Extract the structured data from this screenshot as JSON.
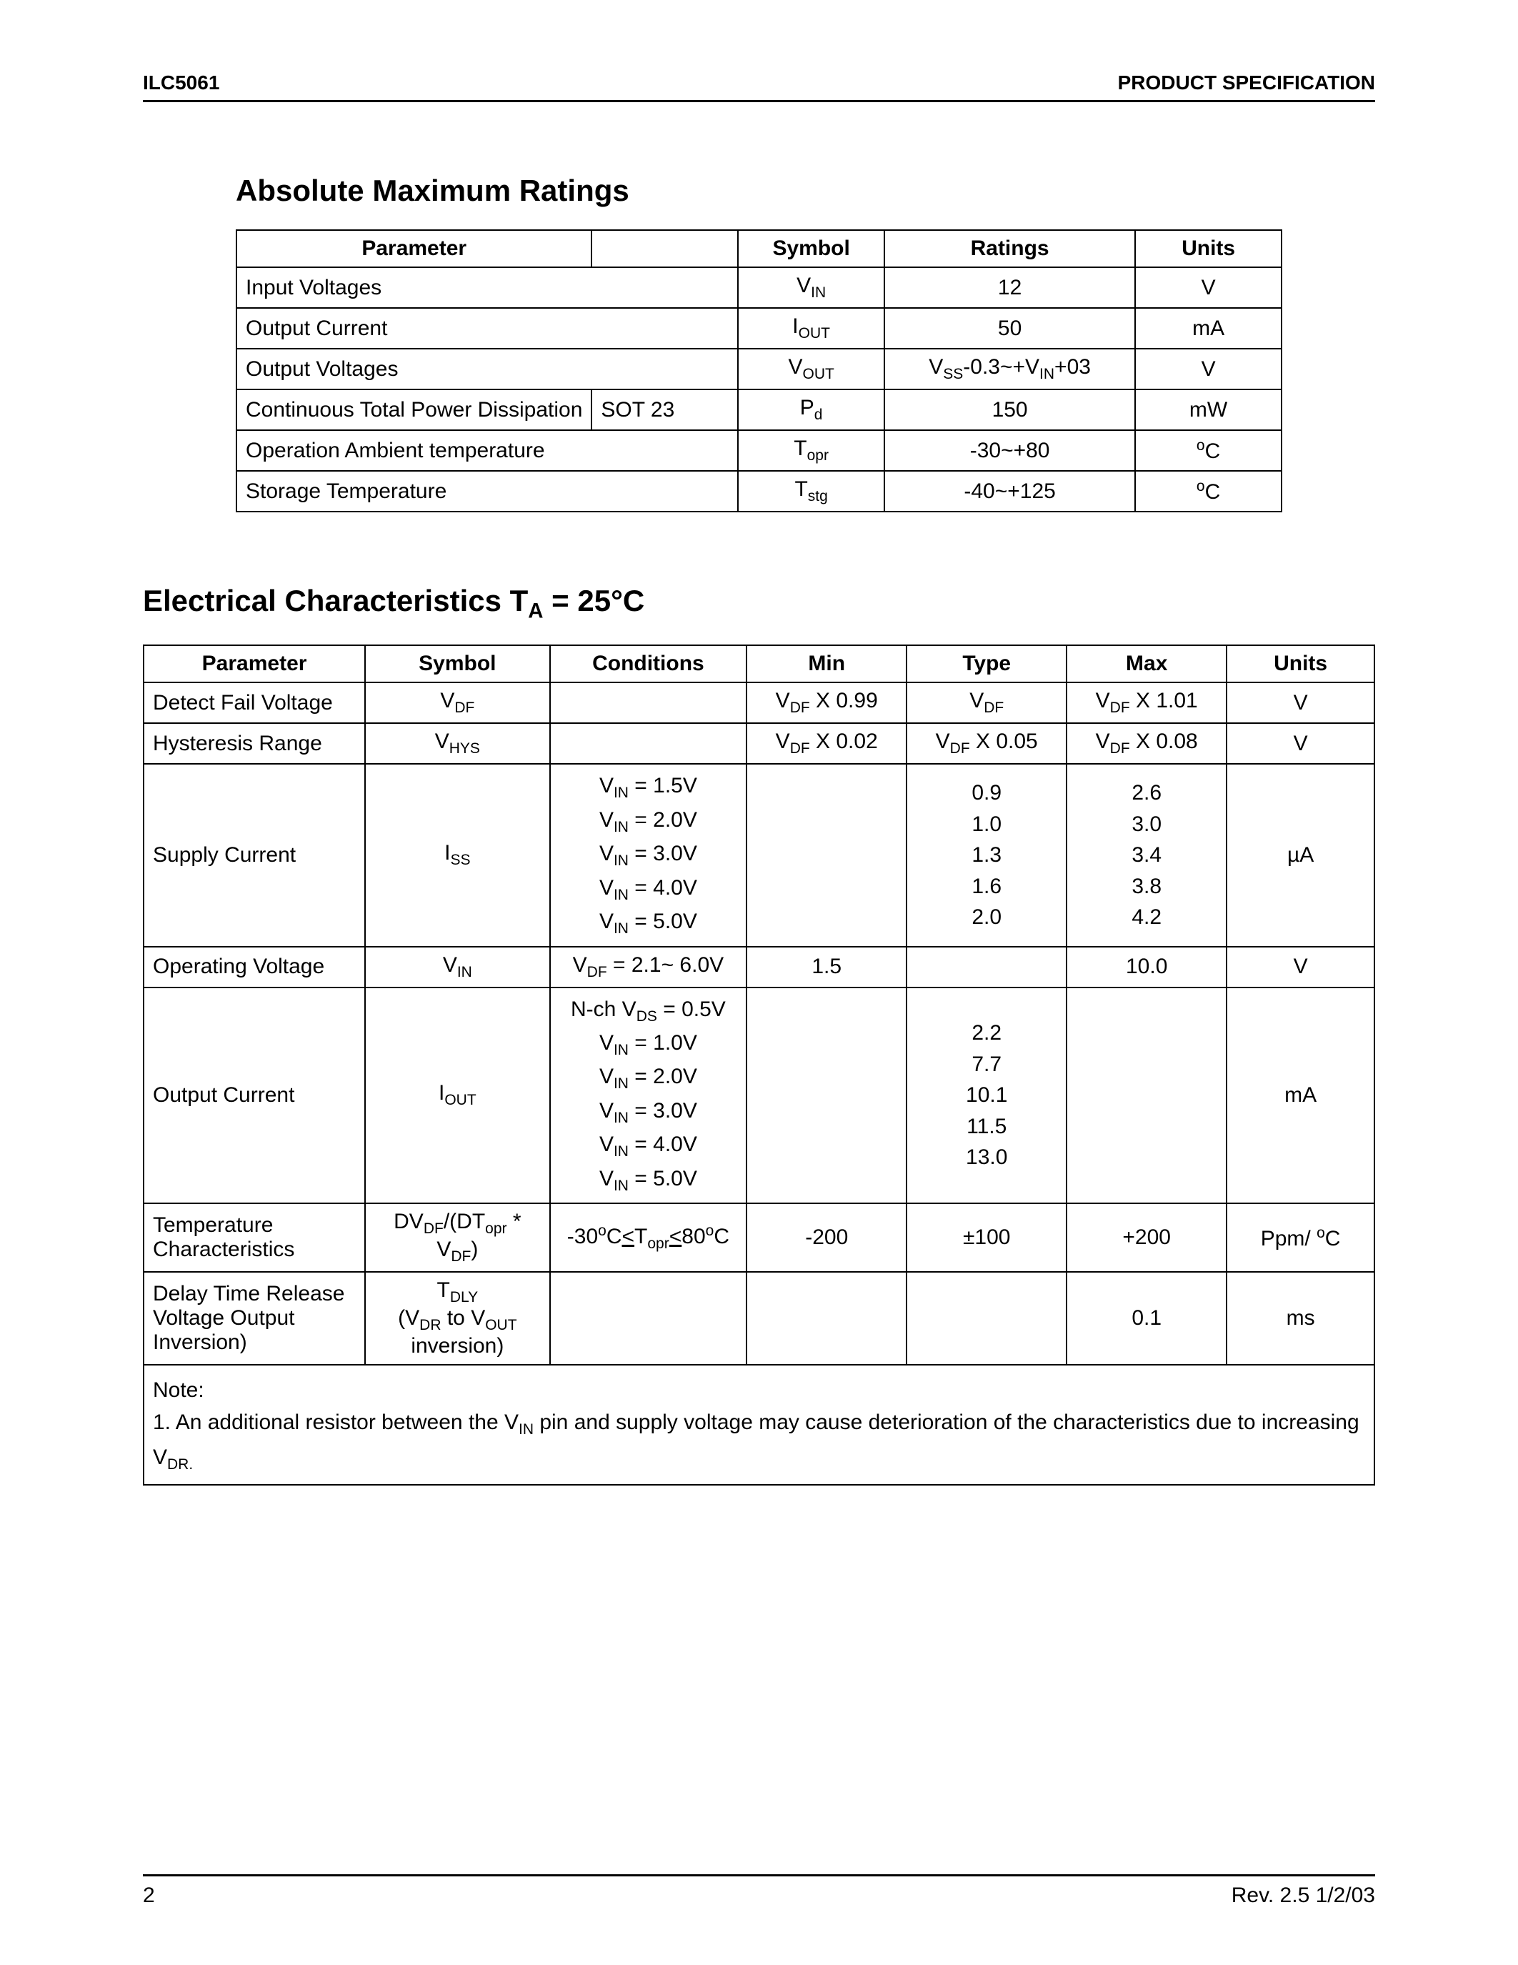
{
  "header": {
    "left": "ILC5061",
    "right": "PRODUCT SPECIFICATION"
  },
  "section1": {
    "title": "Absolute Maximum Ratings",
    "columns": [
      "Parameter",
      "",
      "Symbol",
      "Ratings",
      "Units"
    ],
    "rows": [
      {
        "param": "Input Voltages",
        "extra": "",
        "sym_pre": "V",
        "sym_sub": "IN",
        "rating": "12",
        "units": "V",
        "merge_extra": true
      },
      {
        "param": "Output Current",
        "extra": "",
        "sym_pre": "I",
        "sym_sub": "OUT",
        "rating": "50",
        "units": "mA",
        "merge_extra": true
      },
      {
        "param": "Output Voltages",
        "extra": "",
        "sym_pre": "V",
        "sym_sub": "OUT",
        "rating_html": "V<sub>SS</sub>-0.3~+V<sub>IN</sub>+03",
        "units": "V",
        "merge_extra": true
      },
      {
        "param": "Continuous Total Power Dissipation",
        "extra": "SOT 23",
        "sym_pre": "P",
        "sym_sub": "d",
        "rating": "150",
        "units": "mW",
        "merge_extra": false
      },
      {
        "param": "Operation Ambient temperature",
        "extra": "",
        "sym_pre": "T",
        "sym_sub": "opr",
        "rating": "-30~+80",
        "units_html": "<sup>o</sup>C",
        "merge_extra": true
      },
      {
        "param": "Storage Temperature",
        "extra": "",
        "sym_pre": "T",
        "sym_sub": "stg",
        "rating": "-40~+125",
        "units_html": "<sup>o</sup>C",
        "merge_extra": true
      }
    ]
  },
  "section2": {
    "title_pre": "Electrical Characteristics T",
    "title_sub": "A",
    "title_post": " = 25°C",
    "columns": [
      "Parameter",
      "Symbol",
      "Conditions",
      "Min",
      "Type",
      "Max",
      "Units"
    ]
  },
  "ec": {
    "r1": {
      "param": "Detect Fail Voltage",
      "min": " X 0.99",
      "max": " X 1.01",
      "units": "V"
    },
    "r2": {
      "param": "Hysteresis Range",
      "min": " X 0.02",
      "type": " X 0.05",
      "max": " X 0.08",
      "units": "V"
    },
    "r3": {
      "param": "Supply Current",
      "c1": " = 1.5V",
      "c2": " = 2.0V",
      "c3": " = 3.0V",
      "c4": " = 4.0V",
      "c5": " = 5.0V",
      "t1": "0.9",
      "t2": "1.0",
      "t3": "1.3",
      "t4": "1.6",
      "t5": "2.0",
      "m1": "2.6",
      "m2": "3.0",
      "m3": "3.4",
      "m4": "3.8",
      "m5": "4.2",
      "units": "µA"
    },
    "r4": {
      "param": "Operating Voltage",
      "cond": " = 2.1~ 6.0V",
      "min": "1.5",
      "max": "10.0",
      "units": "V"
    },
    "r5": {
      "param": "Output Current",
      "c0": " = 0.5V",
      "c1": " = 1.0V",
      "c2": " = 2.0V",
      "c3": " = 3.0V",
      "c4": " = 4.0V",
      "c5": " = 5.0V",
      "t1": "2.2",
      "t2": "7.7",
      "t3": "10.1",
      "t4": "11.5",
      "t5": "13.0",
      "units": "mA"
    },
    "r6": {
      "param": "Temperature Characteristics",
      "min": "-200",
      "type": "±100",
      "max": "+200",
      "units": "Ppm/ "
    },
    "r7": {
      "param": "Delay Time Release Voltage  Output Inversion)",
      "max": "0.1",
      "units": "ms"
    },
    "note_label": "Note:",
    "note_text_pre": "1. An additional resistor between the V",
    "note_text_mid": " pin and supply voltage may cause deterioration of the characteristics due to increasing V"
  },
  "footer": {
    "page": "2",
    "rev": "Rev. 2.5 1/2/03"
  }
}
